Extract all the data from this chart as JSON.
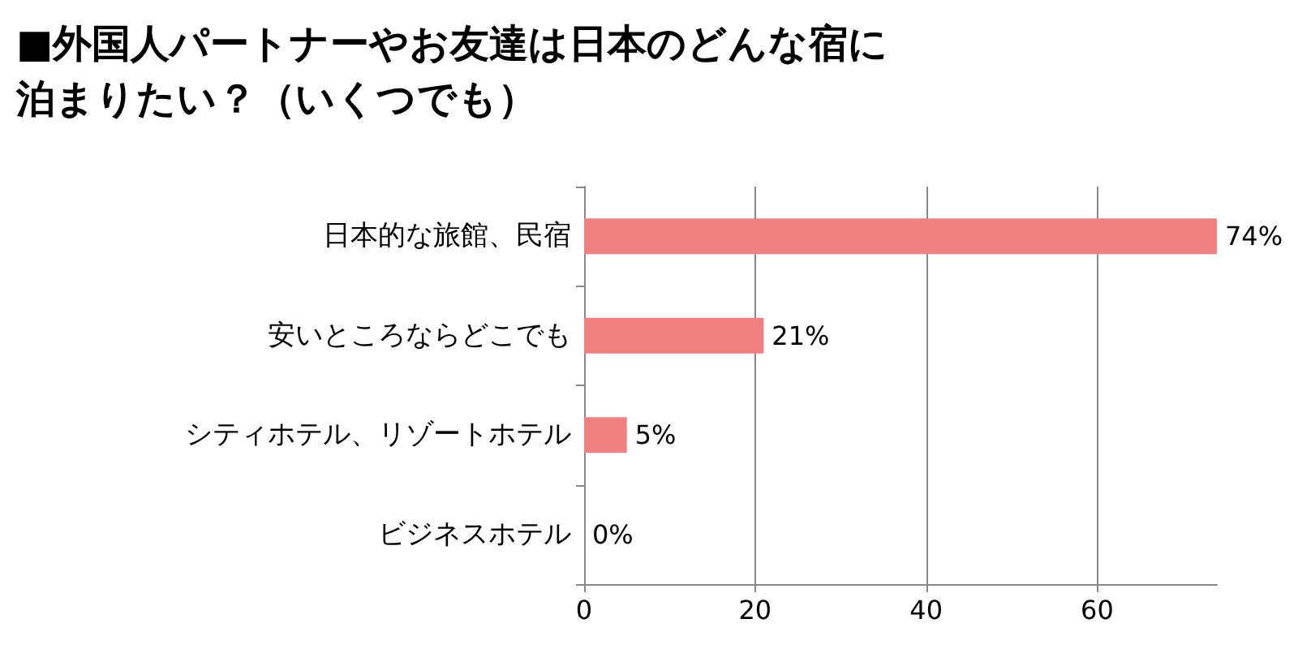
{
  "chart_data": {
    "type": "bar",
    "orientation": "horizontal",
    "title": "■外国人パートナーやお友達は日本のどんな宿に泊まりたい？（いくつでも）",
    "categories": [
      "日本的な旅館、民宿",
      "安いところならどこでも",
      "シティホテル、リゾートホテル",
      "ビジネスホテル"
    ],
    "values": [
      74,
      21,
      5,
      0
    ],
    "color": "#f08080",
    "value_labels": [
      "74%",
      "21%",
      "5%",
      "0%"
    ],
    "xlim": [
      0,
      74
    ],
    "xticks": [
      0,
      20,
      40,
      60
    ],
    "grid": "x"
  }
}
